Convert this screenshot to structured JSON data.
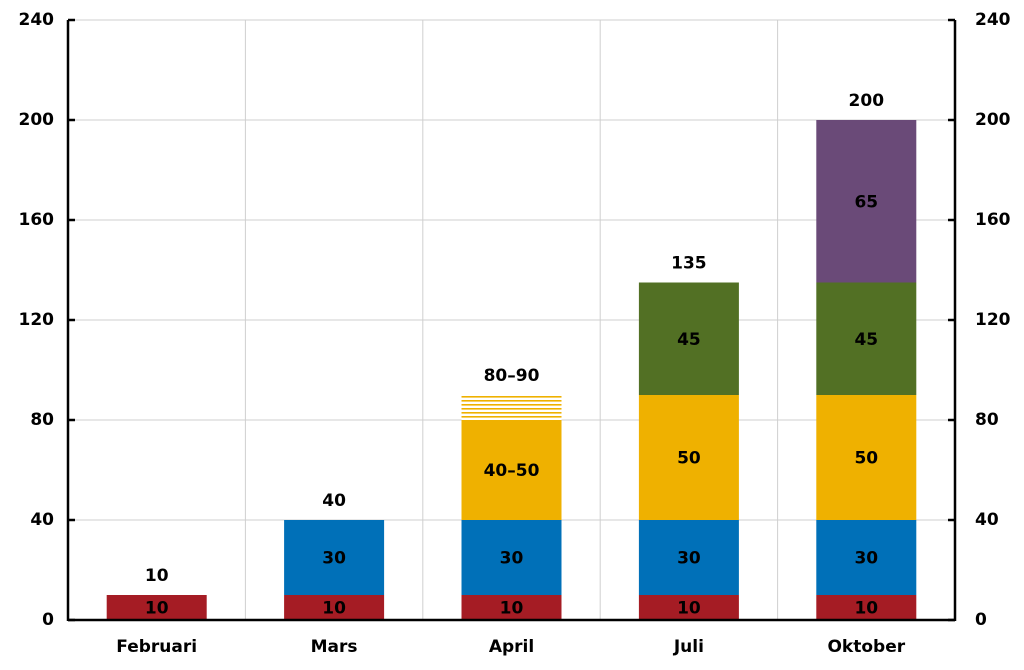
{
  "chart_data": {
    "type": "stacked-bar",
    "categories": [
      "Februari",
      "Mars",
      "April",
      "Juli",
      "Oktober"
    ],
    "series": [
      {
        "color": "#a51c24",
        "values": [
          10,
          10,
          10,
          10,
          10
        ]
      },
      {
        "color": "#0070b8",
        "values": [
          null,
          30,
          30,
          30,
          30
        ]
      },
      {
        "color": "#efb100",
        "values": [
          null,
          null,
          40,
          50,
          50
        ],
        "value_labels": [
          null,
          null,
          "40–50",
          "50",
          "50"
        ]
      },
      {
        "color": "#efb100",
        "pattern": "hatched",
        "values": [
          null,
          null,
          10,
          null,
          null
        ]
      },
      {
        "color": "#527024",
        "values": [
          null,
          null,
          null,
          45,
          45
        ]
      },
      {
        "color": "#6a4a78",
        "values": [
          null,
          null,
          null,
          null,
          65
        ]
      }
    ],
    "totals": {
      "values": [
        10,
        40,
        90,
        135,
        200
      ],
      "value_labels": [
        "10",
        "40",
        "80–90",
        "135",
        "200"
      ]
    },
    "ylim": [
      0,
      240
    ],
    "yticks": [
      0,
      40,
      80,
      120,
      160,
      200,
      240
    ],
    "grid": true
  }
}
